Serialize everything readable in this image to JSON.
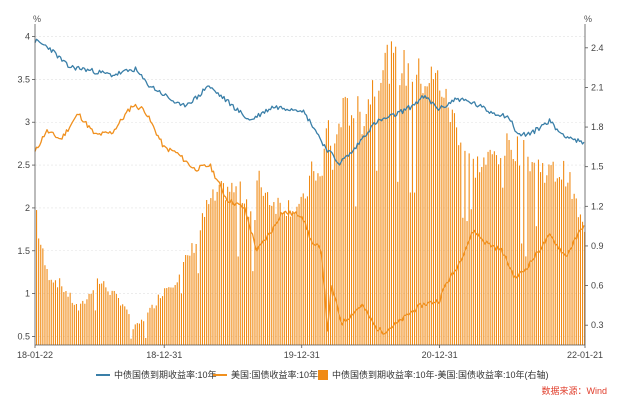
{
  "colors": {
    "cn": "#3a7fa8",
    "us": "#f0901e",
    "spread": "#f08a14",
    "axis": "#555555",
    "grid": "#e2e2e2",
    "source": "#e03c2a"
  },
  "legend": [
    {
      "key": "cn",
      "label": "中债国债到期收益率:10年",
      "kind": "line"
    },
    {
      "key": "us",
      "label": "美国:国债收益率:10年",
      "kind": "line"
    },
    {
      "key": "spread",
      "label": "中债国债到期收益率:10年-美国:国债收益率:10年(右轴)",
      "kind": "bar"
    }
  ],
  "source": "数据来源：Wind",
  "chart_data": {
    "type": "line",
    "left_unit": "%",
    "right_unit": "%",
    "x_range": [
      "2018-01-22",
      "2022-01-21"
    ],
    "x_ticks": [
      "18-01-22",
      "18-12-31",
      "19-12-31",
      "20-12-31",
      "22-01-21"
    ],
    "x_tick_dates": [
      "2018-01-22",
      "2018-12-31",
      "2019-12-31",
      "2020-12-31",
      "2022-01-21"
    ],
    "y_left": {
      "range": [
        0.4,
        4.1
      ],
      "ticks": [
        0.5,
        1,
        1.5,
        2,
        2.5,
        3,
        3.5,
        4
      ]
    },
    "y_right": {
      "range": [
        0.15,
        2.55
      ],
      "ticks": [
        0.3,
        0.6,
        0.9,
        1.2,
        1.5,
        1.8,
        2.1,
        2.4
      ]
    },
    "grid": true,
    "legend_position": "bottom",
    "series": [
      {
        "key": "cn",
        "axis": "left",
        "dates": [
          "2018-01-22",
          "2018-03-01",
          "2018-04-20",
          "2018-06-01",
          "2018-08-15",
          "2018-10-15",
          "2018-11-15",
          "2018-12-31",
          "2019-02-15",
          "2019-04-01",
          "2019-04-25",
          "2019-06-15",
          "2019-08-15",
          "2019-10-15",
          "2019-12-31",
          "2020-01-31",
          "2020-03-01",
          "2020-04-08",
          "2020-05-15",
          "2020-06-15",
          "2020-07-15",
          "2020-09-01",
          "2020-10-15",
          "2020-11-20",
          "2020-12-31",
          "2021-02-15",
          "2021-04-01",
          "2021-05-15",
          "2021-07-01",
          "2021-07-28",
          "2021-09-01",
          "2021-10-18",
          "2021-11-15",
          "2022-01-21"
        ],
        "values": [
          3.95,
          3.87,
          3.65,
          3.62,
          3.55,
          3.62,
          3.45,
          3.32,
          3.18,
          3.3,
          3.43,
          3.25,
          3.02,
          3.18,
          3.15,
          2.95,
          2.72,
          2.52,
          2.66,
          2.85,
          3.0,
          3.08,
          3.18,
          3.3,
          3.15,
          3.28,
          3.22,
          3.12,
          3.07,
          2.85,
          2.87,
          3.02,
          2.88,
          2.74
        ]
      },
      {
        "key": "us",
        "axis": "left",
        "dates": [
          "2018-01-22",
          "2018-02-21",
          "2018-04-01",
          "2018-05-17",
          "2018-07-01",
          "2018-08-15",
          "2018-10-08",
          "2018-11-08",
          "2018-12-31",
          "2019-01-31",
          "2019-03-22",
          "2019-05-01",
          "2019-06-15",
          "2019-08-01",
          "2019-09-03",
          "2019-10-15",
          "2019-11-08",
          "2019-12-31",
          "2020-01-31",
          "2020-02-20",
          "2020-03-09",
          "2020-03-19",
          "2020-04-15",
          "2020-06-08",
          "2020-07-15",
          "2020-08-04",
          "2020-09-15",
          "2020-10-15",
          "2020-11-15",
          "2020-12-31",
          "2021-01-15",
          "2021-02-15",
          "2021-03-31",
          "2021-05-01",
          "2021-06-15",
          "2021-07-19",
          "2021-08-15",
          "2021-10-20",
          "2021-12-01",
          "2022-01-21"
        ],
        "values": [
          2.65,
          2.9,
          2.8,
          3.1,
          2.85,
          2.88,
          3.2,
          3.15,
          2.7,
          2.65,
          2.45,
          2.5,
          2.1,
          2.0,
          1.5,
          1.75,
          1.95,
          1.92,
          1.55,
          1.55,
          0.55,
          1.1,
          0.65,
          0.87,
          0.6,
          0.55,
          0.67,
          0.78,
          0.87,
          0.92,
          1.1,
          1.3,
          1.74,
          1.6,
          1.5,
          1.18,
          1.28,
          1.68,
          1.43,
          1.83
        ]
      },
      {
        "key": "spread",
        "axis": "right",
        "type": "bar",
        "dates": [
          "2018-01-22",
          "2018-01-31",
          "2018-02-21",
          "2018-04-01",
          "2018-05-17",
          "2018-06-15",
          "2018-07-01",
          "2018-08-01",
          "2018-08-15",
          "2018-09-15",
          "2018-10-08",
          "2018-11-08",
          "2018-12-31",
          "2019-01-31",
          "2019-03-22",
          "2019-04-25",
          "2019-06-15",
          "2019-08-01",
          "2019-08-28",
          "2019-09-03",
          "2019-10-15",
          "2019-11-08",
          "2019-12-31",
          "2020-01-31",
          "2020-02-20",
          "2020-03-09",
          "2020-03-19",
          "2020-04-08",
          "2020-05-15",
          "2020-06-08",
          "2020-07-15",
          "2020-08-04",
          "2020-09-15",
          "2020-10-15",
          "2020-11-20",
          "2020-12-31",
          "2021-01-15",
          "2021-02-15",
          "2021-03-31",
          "2021-05-01",
          "2021-06-15",
          "2021-07-19",
          "2021-08-15",
          "2021-10-20",
          "2021-12-01",
          "2022-01-21"
        ],
        "values": [
          1.28,
          1.0,
          0.72,
          0.62,
          0.43,
          0.55,
          0.67,
          0.6,
          0.55,
          0.47,
          0.28,
          0.36,
          0.6,
          0.67,
          0.95,
          1.25,
          1.38,
          1.32,
          1.1,
          1.45,
          1.27,
          1.25,
          1.23,
          1.55,
          1.4,
          1.98,
          1.51,
          1.95,
          2.0,
          1.92,
          2.27,
          2.38,
          2.33,
          2.27,
          2.23,
          2.22,
          2.05,
          1.85,
          1.55,
          1.58,
          1.69,
          1.71,
          1.62,
          1.5,
          1.5,
          1.0
        ]
      }
    ]
  }
}
